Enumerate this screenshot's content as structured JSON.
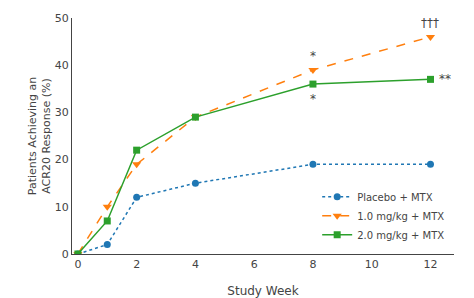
{
  "chart_data": {
    "type": "line",
    "x": [
      0,
      1,
      2,
      4,
      8,
      12
    ],
    "series": [
      {
        "name": "Placebo + MTX",
        "values": [
          0,
          2,
          12,
          15,
          19,
          19
        ],
        "marker": "circle",
        "line_style": "dotted"
      },
      {
        "name": "1.0 mg/kg + MTX",
        "values": [
          0,
          10,
          19,
          29,
          39,
          46
        ],
        "marker": "triangle-down",
        "line_style": "dashed"
      },
      {
        "name": "2.0 mg/kg + MTX",
        "values": [
          0,
          7,
          22,
          29,
          36,
          37
        ],
        "marker": "square",
        "line_style": "solid"
      }
    ],
    "xlabel": "Study Week",
    "ylabel": "Patients Achieving an\nACR20 Response (%)",
    "xlim": [
      -0.2,
      12.8
    ],
    "xticks": [
      0,
      2,
      4,
      6,
      8,
      10,
      12
    ],
    "ylim": [
      0,
      50
    ],
    "yticks": [
      0,
      10,
      20,
      30,
      40,
      50
    ],
    "annotations": [
      {
        "text": "*",
        "x": 8,
        "series": "1.0 mg/kg + MTX",
        "position": "above"
      },
      {
        "text": "*",
        "x": 8,
        "series": "2.0 mg/kg + MTX",
        "position": "below"
      },
      {
        "text": "†††",
        "x": 12,
        "series": "1.0 mg/kg + MTX",
        "position": "above"
      },
      {
        "text": "**",
        "x": 12,
        "series": "2.0 mg/kg + MTX",
        "position": "right"
      }
    ],
    "grid": false,
    "legend": "lower right"
  }
}
